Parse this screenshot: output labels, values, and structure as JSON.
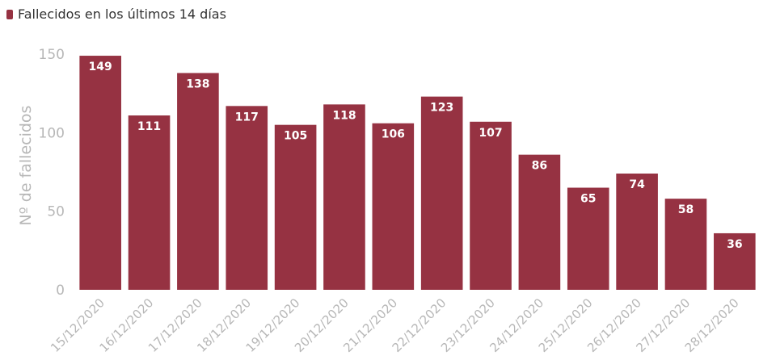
{
  "colors": {
    "bar": "#963242",
    "bar_label": "#ffffff",
    "axis_text": "#b7b7b7",
    "legend_text": "#333333"
  },
  "chart_data": {
    "type": "bar",
    "categories": [
      "15/12/2020",
      "16/12/2020",
      "17/12/2020",
      "18/12/2020",
      "19/12/2020",
      "20/12/2020",
      "21/12/2020",
      "22/12/2020",
      "23/12/2020",
      "24/12/2020",
      "25/12/2020",
      "26/12/2020",
      "27/12/2020",
      "28/12/2020"
    ],
    "series": [
      {
        "name": "Fallecidos en los últimos 14 días",
        "values": [
          149,
          111,
          138,
          117,
          105,
          118,
          106,
          123,
          107,
          86,
          65,
          74,
          58,
          36
        ]
      }
    ],
    "ylabel": "Nº de fallecidos",
    "xlabel": "",
    "ylim": [
      0,
      160
    ],
    "yticks": [
      0,
      50,
      100,
      150
    ],
    "grid": false,
    "legend_position": "top-left",
    "data_labels": true
  }
}
